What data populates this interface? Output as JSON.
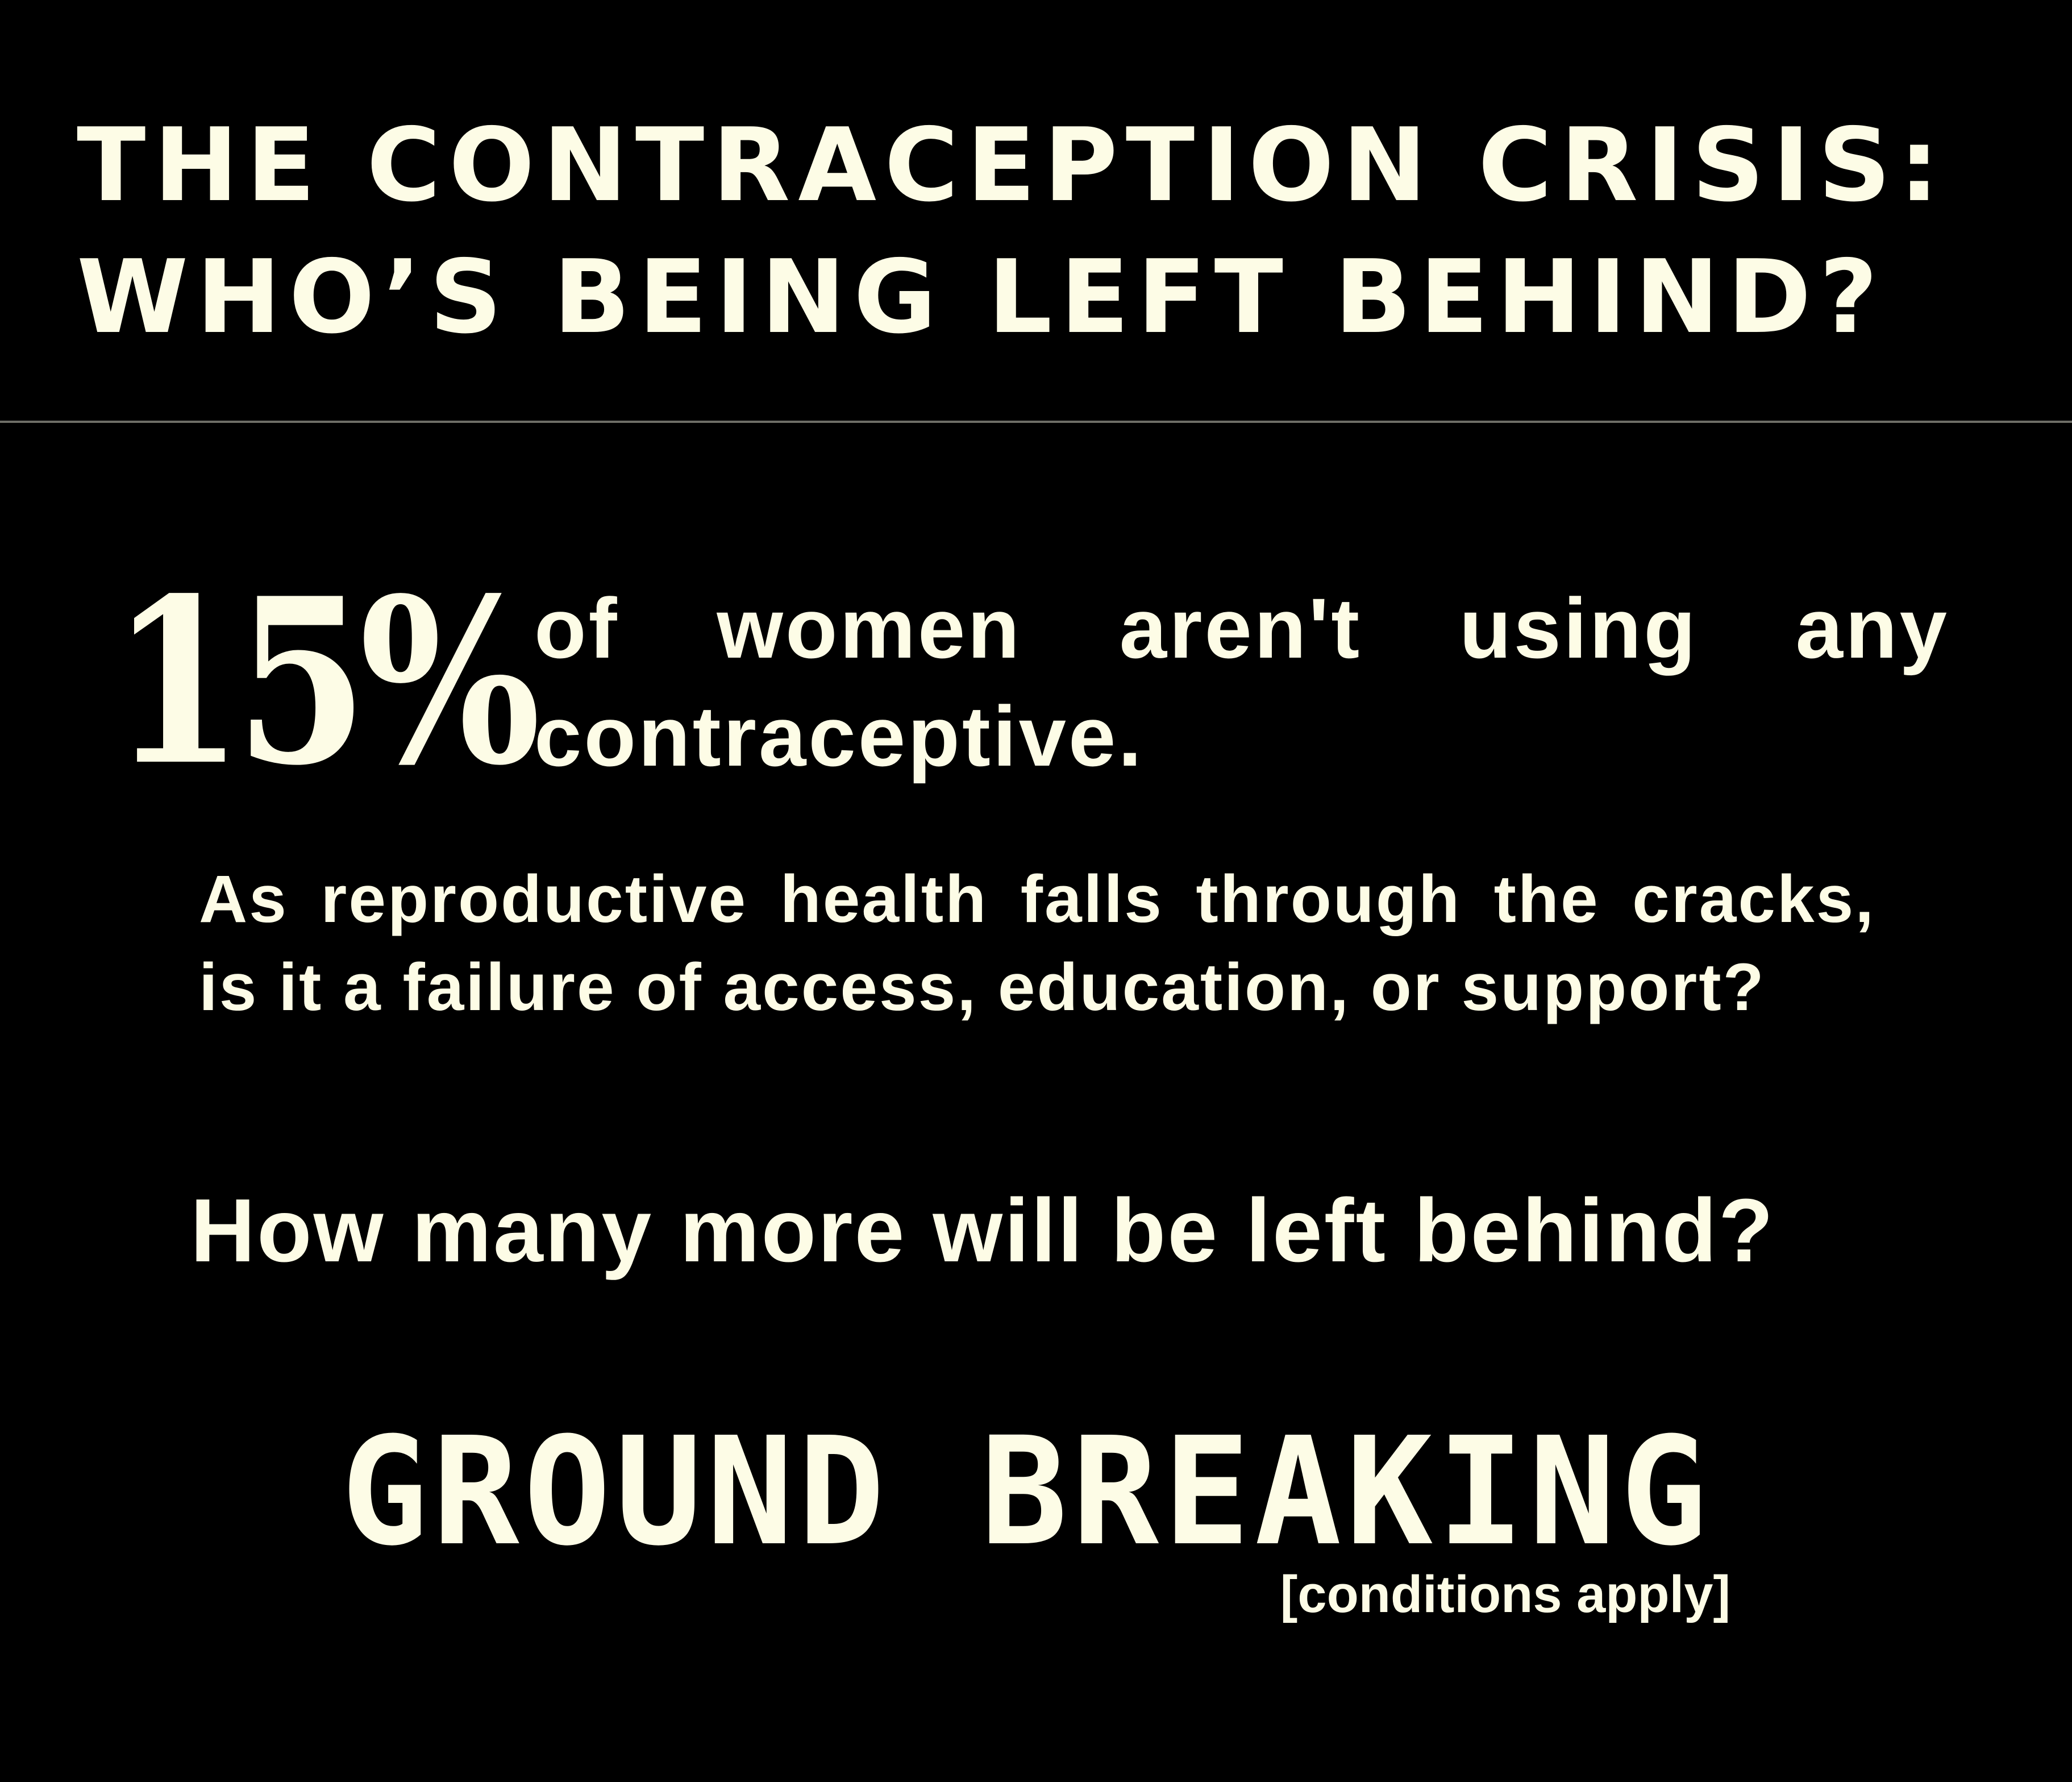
{
  "header": {
    "title_line1": "THE CONTRACEPTION CRISIS:",
    "title_line2": "WHO’S BEING LEFT BEHIND?"
  },
  "stat": {
    "number": "15%",
    "text": "of women aren't using any contraceptive."
  },
  "body": {
    "paragraph": "As reproductive health falls through the cracks, is it a failure of access, education, or support?",
    "question": "How many more will be left behind?"
  },
  "brand": {
    "logo_text": "GROUND BREAKING",
    "tagline": "[conditions apply]"
  },
  "colors": {
    "background": "#000000",
    "text": "#FDFCE6",
    "divider": "#6E6E66"
  }
}
